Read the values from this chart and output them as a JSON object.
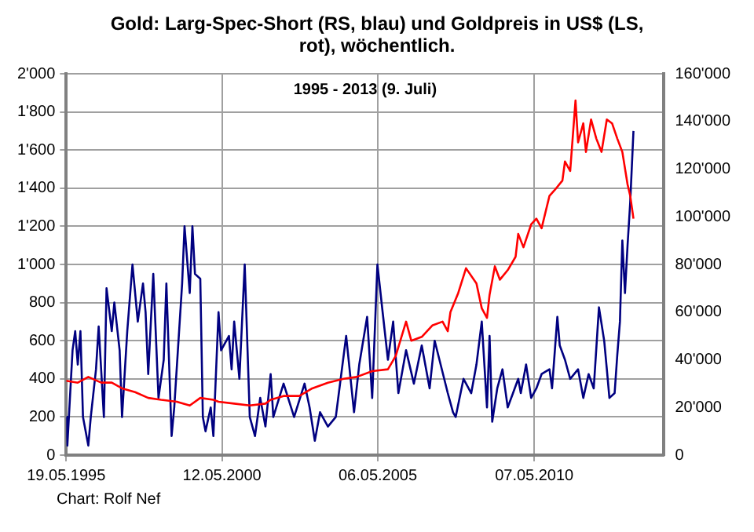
{
  "chart_data": {
    "type": "line",
    "title": "Gold: Larg-Spec-Short (RS, blau) und Goldpreis in US$ (LS, rot), wöchentlich.",
    "subtitle": "1995 - 2013 (9. Juli)",
    "annotations": [
      "Chart: Rolf Nef"
    ],
    "xlim": [
      "1995-05-19",
      "2014-07"
    ],
    "xticks": [
      {
        "value": "1995-05-19",
        "label": "19.05.1995"
      },
      {
        "value": "2000-05-12",
        "label": "12.05.2000"
      },
      {
        "value": "2005-05-06",
        "label": "06.05.2005"
      },
      {
        "value": "2010-05-07",
        "label": "07.05.2010"
      }
    ],
    "ylim": [
      0,
      2000
    ],
    "yticks": [
      0,
      200,
      400,
      600,
      800,
      {
        "value": 1000,
        "label": "1'000"
      },
      {
        "value": 1200,
        "label": "1'200"
      },
      {
        "value": 1400,
        "label": "1'400"
      },
      {
        "value": 1600,
        "label": "1'600"
      },
      {
        "value": 1800,
        "label": "1'800"
      },
      {
        "value": 2000,
        "label": "2'000"
      }
    ],
    "y2lim": [
      0,
      160000
    ],
    "y2ticks": [
      0,
      {
        "value": 20000,
        "label": "20'000"
      },
      {
        "value": 40000,
        "label": "40'000"
      },
      {
        "value": 60000,
        "label": "60'000"
      },
      {
        "value": 80000,
        "label": "80'000"
      },
      {
        "value": 100000,
        "label": "100'000"
      },
      {
        "value": 120000,
        "label": "120'000"
      },
      {
        "value": 140000,
        "label": "140'000"
      },
      {
        "value": 160000,
        "label": "160'000"
      }
    ],
    "grid": true,
    "marker": "none",
    "line_style": "solid",
    "series": [
      {
        "color": "#ff0000",
        "x": [
          "1995-05-19",
          "1995-10",
          "1996-02",
          "1996-07",
          "1996-11",
          "1997-03",
          "1997-08",
          "1998-01",
          "1998-06",
          "1998-12",
          "1999-05",
          "1999-09",
          "2000-02",
          "2000-04",
          "2000-10",
          "2001-04",
          "2001-10",
          "2001-12",
          "2002-05",
          "2002-11",
          "2003-04",
          "2003-10",
          "2004-04",
          "2004-09",
          "2005-03",
          "2005-09",
          "2005-12",
          "2006-04",
          "2006-06",
          "2006-10",
          "2007-02",
          "2007-06",
          "2007-08",
          "2007-09",
          "2007-12",
          "2008-03",
          "2008-07",
          "2008-09",
          "2008-11",
          "2008-12",
          "2009-02",
          "2009-04",
          "2009-07",
          "2009-10",
          "2009-11",
          "2010-01",
          "2010-04",
          "2010-06",
          "2010-08",
          "2010-11",
          "2011-01",
          "2011-04",
          "2011-05",
          "2011-07",
          "2011-09",
          "2011-10",
          "2011-12",
          "2012-01",
          "2012-03",
          "2012-05",
          "2012-07",
          "2012-09",
          "2012-11",
          "2013-01",
          "2013-03",
          "2013-05",
          "2013-06",
          "2013-07-09"
        ],
        "values": [
          390,
          380,
          410,
          380,
          380,
          350,
          330,
          300,
          290,
          280,
          260,
          300,
          290,
          280,
          270,
          260,
          270,
          290,
          310,
          310,
          350,
          380,
          400,
          410,
          440,
          450,
          520,
          700,
          600,
          620,
          680,
          700,
          650,
          750,
          850,
          980,
          900,
          770,
          720,
          840,
          990,
          920,
          970,
          1040,
          1160,
          1090,
          1210,
          1240,
          1190,
          1360,
          1390,
          1440,
          1540,
          1490,
          1860,
          1640,
          1740,
          1590,
          1760,
          1660,
          1590,
          1760,
          1740,
          1660,
          1590,
          1420,
          1360,
          1240
        ]
      },
      {
        "color": "#000080",
        "axis": "y2",
        "x": [
          "1995-05-19",
          "1995-06",
          "1995-08",
          "1995-09",
          "1995-10",
          "1995-11",
          "1995-12",
          "1996-02",
          "1996-03",
          "1996-05",
          "1996-06",
          "1996-08",
          "1996-09",
          "1996-11",
          "1996-12",
          "1997-02",
          "1997-03",
          "1997-05",
          "1997-07",
          "1997-09",
          "1997-11",
          "1997-12",
          "1998-01",
          "1998-03",
          "1998-05",
          "1998-07",
          "1998-08",
          "1998-10",
          "1998-11",
          "1999-02",
          "1999-03",
          "1999-05",
          "1999-06",
          "1999-07",
          "1999-09",
          "1999-10",
          "1999-11",
          "2000-01",
          "2000-02",
          "2000-04",
          "2000-05",
          "2000-08",
          "2000-09",
          "2000-10",
          "2000-12",
          "2001-02",
          "2001-04",
          "2001-06",
          "2001-08",
          "2001-10",
          "2001-12",
          "2002-01",
          "2002-05",
          "2002-09",
          "2003-01",
          "2003-03",
          "2003-05",
          "2003-07",
          "2003-10",
          "2004-01",
          "2004-05",
          "2004-08",
          "2004-10",
          "2005-01",
          "2005-03",
          "2005-05",
          "2005-07",
          "2005-09",
          "2005-11",
          "2006-01",
          "2006-04",
          "2006-07",
          "2006-10",
          "2007-01",
          "2007-03",
          "2007-08",
          "2007-10",
          "2007-11",
          "2008-02",
          "2008-05",
          "2008-07",
          "2008-09",
          "2008-11",
          "2008-12",
          "2009-01",
          "2009-03",
          "2009-05",
          "2009-07",
          "2009-09",
          "2009-11",
          "2009-12",
          "2010-02",
          "2010-04",
          "2010-06",
          "2010-08",
          "2010-11",
          "2010-12",
          "2011-02",
          "2011-03",
          "2011-05",
          "2011-07",
          "2011-10",
          "2011-12",
          "2012-02",
          "2012-04",
          "2012-06",
          "2012-08",
          "2012-09",
          "2012-10",
          "2012-12",
          "2013-01",
          "2013-02",
          "2013-03",
          "2013-04",
          "2013-05",
          "2013-06",
          "2013-07-09"
        ],
        "values": [
          16000,
          4000,
          44000,
          52000,
          38000,
          52000,
          16000,
          4000,
          16000,
          36000,
          54000,
          16000,
          70000,
          52000,
          64000,
          44000,
          16000,
          52000,
          80000,
          56000,
          72000,
          60000,
          34000,
          76000,
          24000,
          40000,
          72000,
          8000,
          20000,
          72000,
          96000,
          68000,
          96000,
          76000,
          74000,
          16000,
          10000,
          20000,
          8000,
          60000,
          44000,
          50000,
          36000,
          56000,
          32000,
          80000,
          16000,
          8000,
          24000,
          12000,
          34000,
          16000,
          30000,
          16000,
          30000,
          20000,
          6000,
          18000,
          12000,
          16000,
          50000,
          18000,
          38000,
          58000,
          24000,
          80000,
          60000,
          40000,
          56000,
          26000,
          44000,
          30000,
          46000,
          28000,
          48000,
          26000,
          18000,
          16000,
          32000,
          26000,
          38000,
          56000,
          20000,
          50000,
          14000,
          28000,
          36000,
          20000,
          26000,
          32000,
          26000,
          38000,
          24000,
          28000,
          34000,
          36000,
          28000,
          58000,
          46000,
          40000,
          32000,
          36000,
          24000,
          34000,
          28000,
          62000,
          48000,
          36000,
          24000,
          26000,
          42000,
          56000,
          90000,
          68000,
          88000,
          106000,
          136000
        ]
      }
    ]
  }
}
